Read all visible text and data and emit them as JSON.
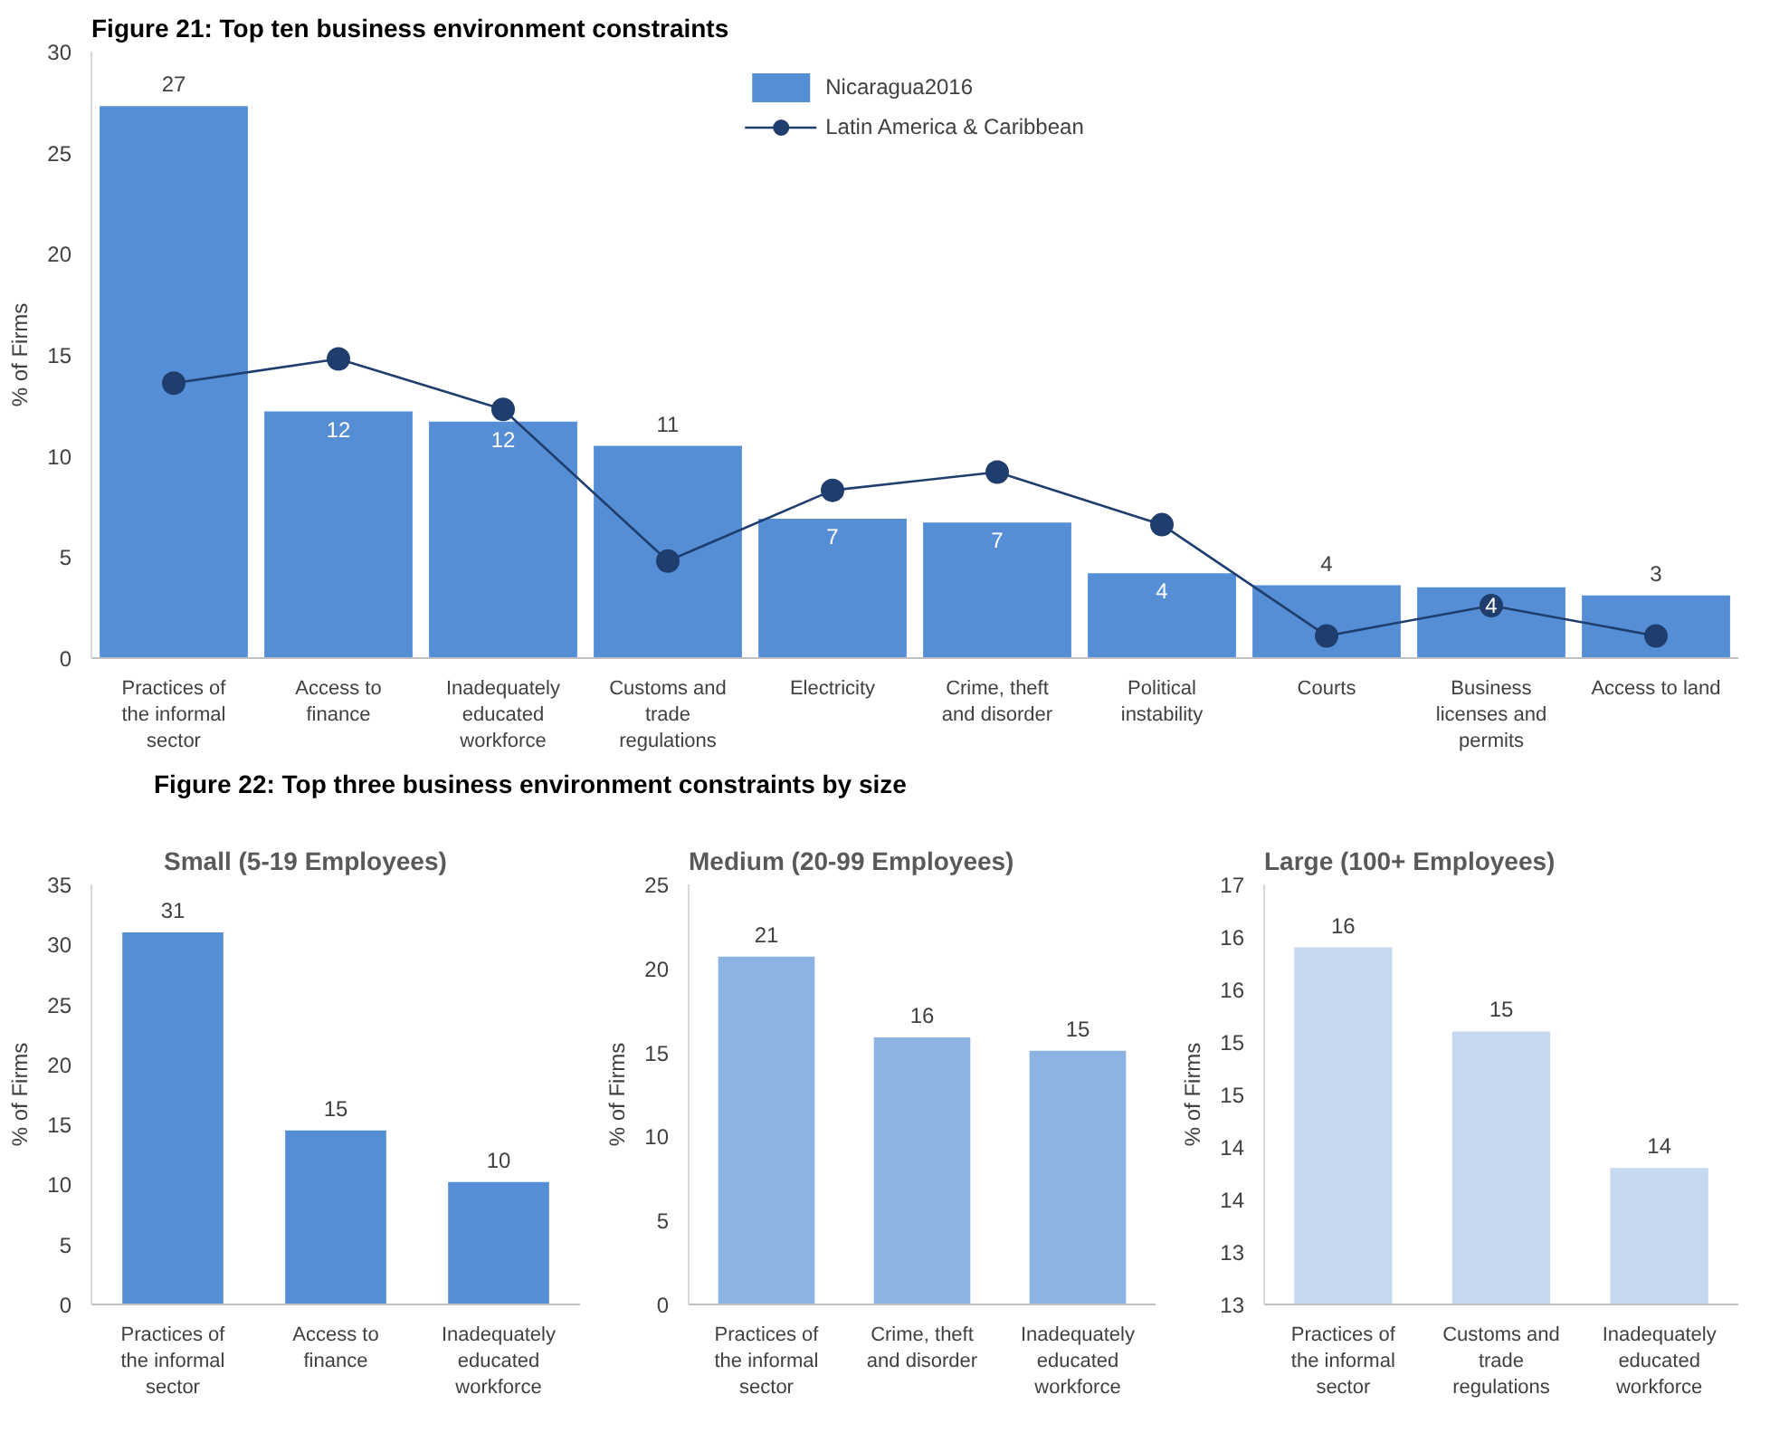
{
  "chart_data": [
    {
      "type": "bar",
      "title": "Figure 21: Top ten business environment constraints",
      "ylabel": "% of Firms",
      "categories": [
        "Practices of the informal sector",
        "Access to finance",
        "Inadequately educated workforce",
        "Customs and trade regulations",
        "Electricity",
        "Crime, theft and disorder",
        "Political instability",
        "Courts",
        "Business licenses and permits",
        "Access to land"
      ],
      "ylim": [
        0,
        30
      ],
      "yticks": [
        0,
        5,
        10,
        15,
        20,
        25,
        30
      ],
      "legend": "top",
      "series": [
        {
          "name": "Nicaragua2016",
          "color": "#558ed5",
          "values": [
            27.3,
            12.2,
            11.7,
            10.5,
            6.9,
            6.7,
            4.2,
            3.6,
            3.5,
            3.1
          ],
          "value_labels": [
            "27",
            "12",
            "12",
            "11",
            "7",
            "7",
            "4",
            "4",
            "4",
            "3"
          ]
        },
        {
          "name": "Latin America & Caribbean",
          "type": "line",
          "color": "#1f3e6e",
          "marker": "circle",
          "values": [
            13.6,
            14.8,
            12.3,
            4.8,
            8.3,
            9.2,
            6.6,
            1.1,
            2.6,
            1.1
          ]
        }
      ]
    },
    {
      "type": "bar",
      "title": "Figure 22: Top three business environment constraints by size",
      "subtitle": "Small (5-19 Employees)",
      "ylabel": "% of Firms",
      "categories": [
        "Practices of the informal sector",
        "Access to finance",
        "Inadequately educated workforce"
      ],
      "ylim": [
        0,
        35
      ],
      "yticks": [
        0,
        5,
        10,
        15,
        20,
        25,
        30,
        35
      ],
      "color": "#558ed5",
      "values": [
        31.0,
        14.5,
        10.2
      ],
      "value_labels": [
        "31",
        "15",
        "10"
      ]
    },
    {
      "type": "bar",
      "title": "Medium (20-99 Employees)",
      "ylabel": "% of Firms",
      "categories": [
        "Practices of the informal sector",
        "Crime, theft and disorder",
        "Inadequately educated workforce"
      ],
      "ylim": [
        0,
        25
      ],
      "yticks": [
        0,
        5,
        10,
        15,
        20,
        25
      ],
      "color": "#8db3e2",
      "values": [
        20.7,
        15.9,
        15.1
      ],
      "value_labels": [
        "21",
        "16",
        "15"
      ]
    },
    {
      "type": "bar",
      "title": "Large (100+ Employees)",
      "ylabel": "% of Firms",
      "categories": [
        "Practices of the informal sector",
        "Customs and trade regulations",
        "Inadequately educated workforce"
      ],
      "ylim": [
        12.8,
        16.8
      ],
      "yticks": [
        {
          "value": 12.8,
          "label": "13"
        },
        {
          "value": 13.3,
          "label": "13"
        },
        {
          "value": 13.8,
          "label": "14"
        },
        {
          "value": 14.3,
          "label": "14"
        },
        {
          "value": 14.8,
          "label": "15"
        },
        {
          "value": 15.3,
          "label": "15"
        },
        {
          "value": 15.8,
          "label": "16"
        },
        {
          "value": 16.3,
          "label": "16"
        },
        {
          "value": 16.8,
          "label": "17"
        }
      ],
      "color": "#c6d9f1",
      "values": [
        16.2,
        15.4,
        14.1
      ],
      "value_labels": [
        "16",
        "15",
        "14"
      ]
    }
  ]
}
